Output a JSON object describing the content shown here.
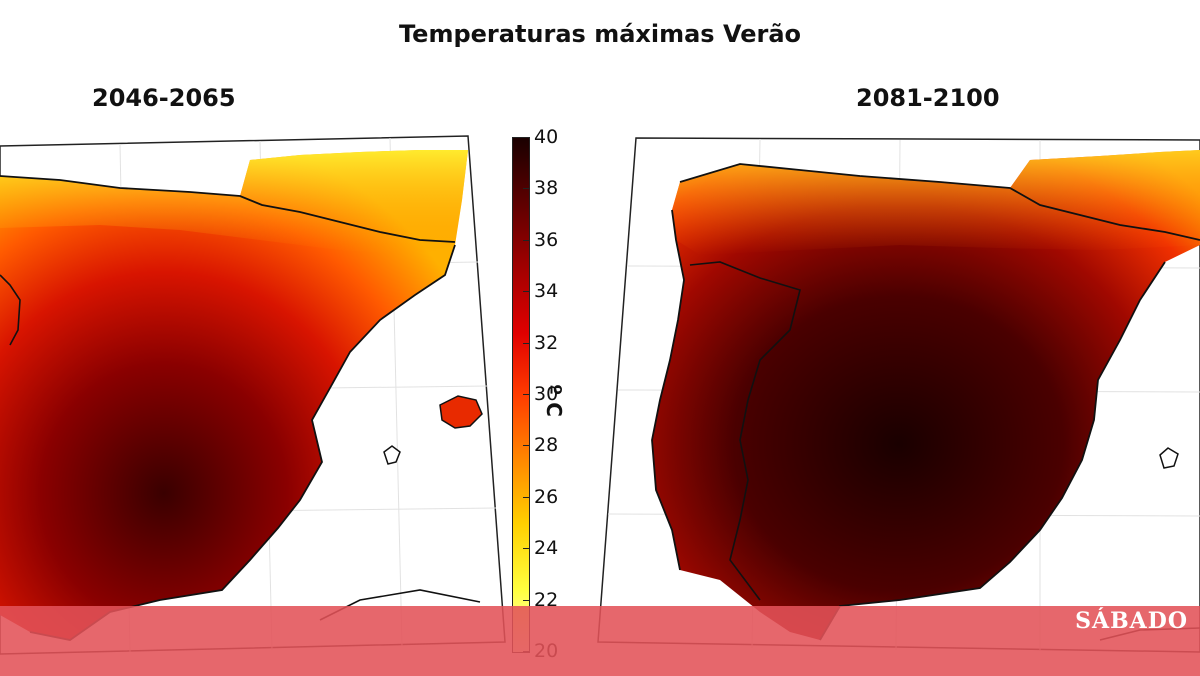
{
  "title": "Temperaturas máximas Verão",
  "panels": [
    {
      "period": "2046-2065"
    },
    {
      "period": "2081-2100"
    }
  ],
  "colorbar": {
    "label": "º C",
    "ticks": [
      "40",
      "38",
      "36",
      "34",
      "32",
      "30",
      "28",
      "26",
      "24",
      "22",
      "20"
    ],
    "min": 20,
    "max": 40,
    "colormap": "hot_r"
  },
  "brand": "SÁBADO",
  "colors": {
    "footer_overlay": "#e25258",
    "land_hot": "#1a0000",
    "land_warm": "#d01000",
    "land_mild": "#ffd000",
    "sea": "#ffffff"
  }
}
